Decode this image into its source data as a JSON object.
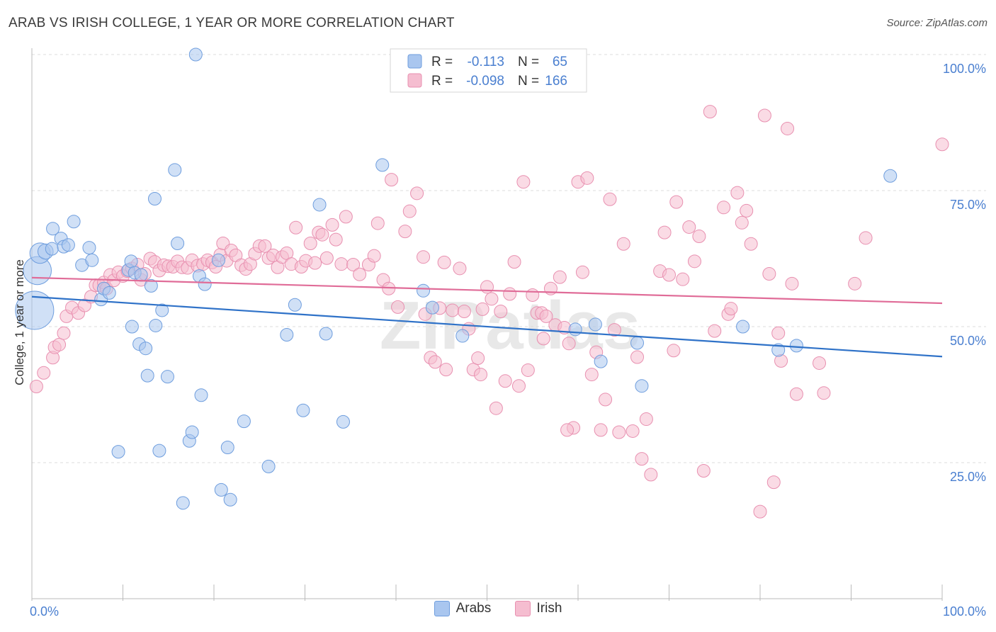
{
  "title": "ARAB VS IRISH COLLEGE, 1 YEAR OR MORE CORRELATION CHART",
  "source": "Source: ZipAtlas.com",
  "watermark": "ZIPatlas",
  "colors": {
    "arab_fill": "#a9c6ef",
    "arab_stroke": "#6f9ede",
    "arab_line": "#2f72c8",
    "irish_fill": "#f5bdd0",
    "irish_stroke": "#e890b0",
    "irish_line": "#e06c98",
    "tick_label": "#4a7fd0",
    "grid": "#dddddd"
  },
  "legend_top": {
    "rows": [
      {
        "r_label": "R =",
        "r_value": "-0.113",
        "n_label": "N =",
        "n_value": "65"
      },
      {
        "r_label": "R =",
        "r_value": "-0.098",
        "n_label": "N =",
        "n_value": "166"
      }
    ]
  },
  "legend_bottom": [
    "Arabs",
    "Irish"
  ],
  "chart_data": {
    "type": "scatter",
    "ylabel": "College, 1 year or more",
    "x_tick_labels": [
      "0.0%",
      "100.0%"
    ],
    "y_tick_labels": [
      "25.0%",
      "50.0%",
      "75.0%",
      "100.0%"
    ],
    "xlim": [
      0,
      100
    ],
    "ylim": [
      0,
      100
    ],
    "grid": true,
    "series": [
      {
        "name": "Arabs",
        "r": -0.113,
        "n": 65,
        "trend": [
          [
            0,
            55.5
          ],
          [
            100,
            44.5
          ]
        ],
        "points": [
          [
            0.3,
            53,
            3
          ],
          [
            0.6,
            60.3,
            2.2
          ],
          [
            0.9,
            63.5,
            1.6
          ],
          [
            1.5,
            63.8,
            1.2
          ],
          [
            2.2,
            64.3,
            1
          ],
          [
            2.3,
            68,
            1
          ],
          [
            3.2,
            66.2,
            1
          ],
          [
            3.5,
            64.7,
            1
          ],
          [
            4,
            65,
            1
          ],
          [
            4.6,
            69.3,
            1
          ],
          [
            5.5,
            61.3,
            1
          ],
          [
            6.3,
            64.5,
            1
          ],
          [
            6.6,
            62.2,
            1
          ],
          [
            7.6,
            55,
            1
          ],
          [
            7.9,
            57,
            1
          ],
          [
            8.5,
            56.2,
            1
          ],
          [
            10.6,
            60.4,
            1
          ],
          [
            10.9,
            62,
            1
          ],
          [
            11,
            50,
            1
          ],
          [
            11.3,
            59.9,
            1
          ],
          [
            11.8,
            46.8,
            1
          ],
          [
            12,
            59.5,
            1
          ],
          [
            12.5,
            46,
            1
          ],
          [
            12.7,
            41,
            1
          ],
          [
            13.1,
            57.5,
            1
          ],
          [
            13.5,
            73.5,
            1
          ],
          [
            13.6,
            50.2,
            1
          ],
          [
            14.3,
            53,
            1
          ],
          [
            14.9,
            40.8,
            1
          ],
          [
            15.7,
            78.8,
            1
          ],
          [
            16,
            65.3,
            1
          ],
          [
            16.6,
            17.6,
            1
          ],
          [
            17.3,
            29,
            1
          ],
          [
            17.6,
            30.6,
            1
          ],
          [
            18.4,
            59.3,
            1
          ],
          [
            18.6,
            37.4,
            1
          ],
          [
            19,
            57.8,
            1
          ],
          [
            20.5,
            62.2,
            1
          ],
          [
            20.8,
            20,
            1
          ],
          [
            21.5,
            27.8,
            1
          ],
          [
            21.8,
            18.2,
            1
          ],
          [
            23.3,
            32.6,
            1
          ],
          [
            26,
            24.3,
            1
          ],
          [
            28,
            48.5,
            1
          ],
          [
            28.9,
            54,
            1
          ],
          [
            29.8,
            34.6,
            1
          ],
          [
            31.6,
            72.4,
            1
          ],
          [
            32.3,
            48.7,
            1
          ],
          [
            34.2,
            32.5,
            1
          ],
          [
            38.5,
            79.7,
            1
          ],
          [
            43,
            56.6,
            1
          ],
          [
            44,
            53.5,
            1
          ],
          [
            47.3,
            48.3,
            1
          ],
          [
            59.7,
            49.5,
            1
          ],
          [
            61.9,
            50.4,
            1
          ],
          [
            62.5,
            43.6,
            1
          ],
          [
            66.5,
            47,
            1
          ],
          [
            67,
            39.1,
            1
          ],
          [
            78.1,
            50,
            1
          ],
          [
            82,
            45.7,
            1
          ],
          [
            84,
            46.5,
            1
          ],
          [
            94.3,
            77.7,
            1
          ],
          [
            9.5,
            27,
            1
          ],
          [
            14,
            27.2,
            1
          ],
          [
            18,
            100,
            1
          ]
        ]
      },
      {
        "name": "Irish",
        "r": -0.098,
        "n": 166,
        "trend": [
          [
            0,
            59
          ],
          [
            100,
            54.3
          ]
        ],
        "points": [
          [
            0.5,
            39,
            1
          ],
          [
            1.3,
            41.5,
            1
          ],
          [
            2.3,
            44.3,
            1
          ],
          [
            2.5,
            46.2,
            1
          ],
          [
            3,
            46.7,
            1
          ],
          [
            3.5,
            48.8,
            1
          ],
          [
            3.8,
            51.9,
            1
          ],
          [
            4.4,
            53.5,
            1
          ],
          [
            5.1,
            52.5,
            1
          ],
          [
            5.8,
            53.9,
            1
          ],
          [
            6.5,
            55.5,
            1
          ],
          [
            7,
            57.6,
            1
          ],
          [
            7.4,
            57.6,
            1
          ],
          [
            7.9,
            58.1,
            1
          ],
          [
            8.2,
            57,
            1
          ],
          [
            8.6,
            59.5,
            1
          ],
          [
            9,
            58.5,
            1
          ],
          [
            9.5,
            60,
            1
          ],
          [
            10,
            59.3,
            1
          ],
          [
            10.5,
            60.2,
            1
          ],
          [
            11,
            60.7,
            1
          ],
          [
            11.6,
            61.4,
            1
          ],
          [
            12,
            58.6,
            1
          ],
          [
            12.4,
            59.7,
            1
          ],
          [
            13,
            62.5,
            1
          ],
          [
            13.5,
            61.9,
            1
          ],
          [
            14,
            60.3,
            1
          ],
          [
            14.5,
            61.3,
            1
          ],
          [
            15,
            61.1,
            1
          ],
          [
            15.5,
            61,
            1
          ],
          [
            16,
            62,
            1
          ],
          [
            16.5,
            60.9,
            1
          ],
          [
            17.1,
            60.8,
            1
          ],
          [
            17.6,
            62.2,
            1
          ],
          [
            18.2,
            61.2,
            1
          ],
          [
            18.8,
            61.5,
            1
          ],
          [
            19.3,
            62.2,
            1
          ],
          [
            19.8,
            61.8,
            1
          ],
          [
            20.2,
            61,
            1
          ],
          [
            20.7,
            63.2,
            1
          ],
          [
            21,
            65.3,
            1
          ],
          [
            21.4,
            62.1,
            1
          ],
          [
            21.9,
            64,
            1
          ],
          [
            22.4,
            63.1,
            1
          ],
          [
            23,
            61.3,
            1
          ],
          [
            23.5,
            60.6,
            1
          ],
          [
            24,
            61.5,
            1
          ],
          [
            24.5,
            63.4,
            1
          ],
          [
            25,
            64.8,
            1
          ],
          [
            25.6,
            64.8,
            1
          ],
          [
            26,
            62.6,
            1
          ],
          [
            26.5,
            63.1,
            1
          ],
          [
            27,
            60.9,
            1
          ],
          [
            27.5,
            62.8,
            1
          ],
          [
            28,
            63.5,
            1
          ],
          [
            28.5,
            61.5,
            1
          ],
          [
            29,
            68.2,
            1
          ],
          [
            29.6,
            61,
            1
          ],
          [
            30.1,
            62.1,
            1
          ],
          [
            30.6,
            65.3,
            1
          ],
          [
            31.1,
            61.7,
            1
          ],
          [
            31.5,
            67.3,
            1
          ],
          [
            31.9,
            66.9,
            1
          ],
          [
            32.4,
            62.6,
            1
          ],
          [
            33,
            68.7,
            1
          ],
          [
            33.4,
            66,
            1
          ],
          [
            34,
            61.5,
            1
          ],
          [
            34.5,
            70.2,
            1
          ],
          [
            35.3,
            61.4,
            1
          ],
          [
            36,
            59.6,
            1
          ],
          [
            37,
            61.4,
            1
          ],
          [
            37.6,
            63,
            1
          ],
          [
            38,
            69,
            1
          ],
          [
            38.6,
            58.6,
            1
          ],
          [
            39.2,
            57,
            1
          ],
          [
            39.5,
            77,
            1
          ],
          [
            40.2,
            53.6,
            1
          ],
          [
            41,
            67.5,
            1
          ],
          [
            41.5,
            71.2,
            1
          ],
          [
            42.3,
            74.5,
            1
          ],
          [
            43,
            62.8,
            1
          ],
          [
            43.8,
            44.3,
            1
          ],
          [
            44.3,
            43.5,
            1
          ],
          [
            44.8,
            53.4,
            1
          ],
          [
            45.3,
            61.8,
            1
          ],
          [
            45.5,
            42.1,
            1
          ],
          [
            46.2,
            53,
            1
          ],
          [
            47,
            60.7,
            1
          ],
          [
            47.5,
            52.8,
            1
          ],
          [
            48,
            49.6,
            1
          ],
          [
            48.5,
            42.1,
            1
          ],
          [
            49,
            44.2,
            1
          ],
          [
            49.5,
            53.2,
            1
          ],
          [
            50,
            57.3,
            1
          ],
          [
            50.5,
            55.1,
            1
          ],
          [
            51,
            35,
            1
          ],
          [
            51.5,
            52.8,
            1
          ],
          [
            52,
            40,
            1
          ],
          [
            52.5,
            56,
            1
          ],
          [
            53,
            61.9,
            1
          ],
          [
            53.5,
            39.1,
            1
          ],
          [
            54,
            76.6,
            1
          ],
          [
            54.5,
            42,
            1
          ],
          [
            55,
            55.8,
            1
          ],
          [
            55.5,
            52.5,
            1
          ],
          [
            56,
            52.5,
            1
          ],
          [
            56.5,
            51.9,
            1
          ],
          [
            57,
            57,
            1
          ],
          [
            57.5,
            50.3,
            1
          ],
          [
            58,
            59.1,
            1
          ],
          [
            58.5,
            49.8,
            1
          ],
          [
            59,
            46.9,
            1
          ],
          [
            59.5,
            31.4,
            1
          ],
          [
            60,
            76.6,
            1
          ],
          [
            60.5,
            60,
            1
          ],
          [
            61,
            77.3,
            1
          ],
          [
            61.5,
            41.2,
            1
          ],
          [
            62,
            45.3,
            1
          ],
          [
            62.5,
            31,
            1
          ],
          [
            63,
            36.6,
            1
          ],
          [
            63.5,
            73.4,
            1
          ],
          [
            64,
            49.4,
            1
          ],
          [
            64.5,
            30.6,
            1
          ],
          [
            65,
            65.2,
            1
          ],
          [
            66,
            30.8,
            1
          ],
          [
            66.5,
            44.4,
            1
          ],
          [
            67,
            25.7,
            1
          ],
          [
            67.5,
            33,
            1
          ],
          [
            68,
            22.8,
            1
          ],
          [
            69,
            60.2,
            1
          ],
          [
            69.5,
            67.3,
            1
          ],
          [
            70,
            59.5,
            1
          ],
          [
            70.5,
            45.6,
            1
          ],
          [
            70.8,
            72.9,
            1
          ],
          [
            71.5,
            58.7,
            1
          ],
          [
            72.2,
            68.3,
            1
          ],
          [
            72.8,
            62,
            1
          ],
          [
            73.3,
            66.6,
            1
          ],
          [
            73.8,
            23.5,
            1
          ],
          [
            74.5,
            89.5,
            1
          ],
          [
            75,
            49.2,
            1
          ],
          [
            76,
            71.9,
            1
          ],
          [
            76.5,
            52.3,
            1
          ],
          [
            76.8,
            53.3,
            1
          ],
          [
            77.5,
            74.6,
            1
          ],
          [
            78,
            69.1,
            1
          ],
          [
            78.5,
            71.3,
            1
          ],
          [
            79,
            65.2,
            1
          ],
          [
            80,
            16,
            1
          ],
          [
            80.5,
            88.8,
            1
          ],
          [
            81,
            59.7,
            1
          ],
          [
            81.5,
            21.4,
            1
          ],
          [
            82,
            48.8,
            1
          ],
          [
            82.3,
            43.7,
            1
          ],
          [
            83,
            86.4,
            1
          ],
          [
            83.5,
            57.9,
            1
          ],
          [
            84,
            37.6,
            1
          ],
          [
            86.5,
            43.3,
            1
          ],
          [
            87,
            37.8,
            1
          ],
          [
            90.4,
            57.9,
            1
          ],
          [
            91.6,
            66.3,
            1
          ],
          [
            100,
            83.5,
            1
          ],
          [
            49.3,
            41.2,
            1
          ],
          [
            56.2,
            47.8,
            1
          ],
          [
            58.8,
            31,
            1
          ],
          [
            43.2,
            52.3,
            1
          ]
        ]
      }
    ]
  }
}
